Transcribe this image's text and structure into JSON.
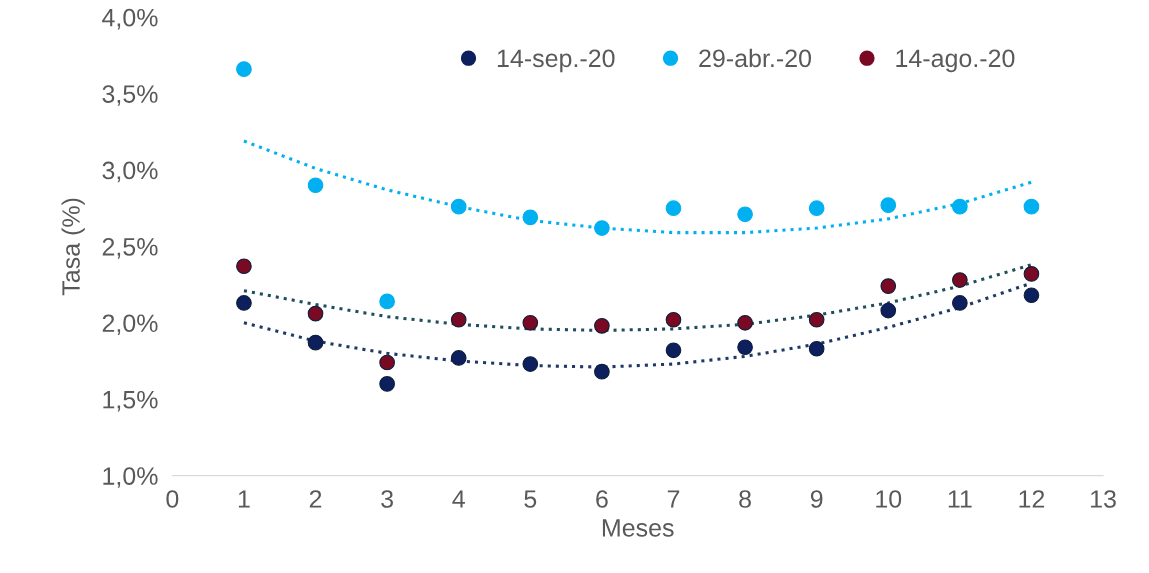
{
  "chart_data": {
    "type": "scatter",
    "xlabel": "Meses",
    "ylabel": "Tasa (%)",
    "x": [
      1,
      2,
      3,
      4,
      5,
      6,
      7,
      8,
      9,
      10,
      11,
      12
    ],
    "series": [
      {
        "name": "14-sep.-20",
        "color": "#0d1f5c",
        "values": [
          2.13,
          1.87,
          1.6,
          1.77,
          1.73,
          1.68,
          1.82,
          1.84,
          1.83,
          2.08,
          2.13,
          2.18
        ]
      },
      {
        "name": "29-abr.-20",
        "color": "#00b0f0",
        "values": [
          3.66,
          2.9,
          2.14,
          2.76,
          2.69,
          2.62,
          2.75,
          2.71,
          2.75,
          2.77,
          2.76,
          2.76
        ]
      },
      {
        "name": "14-ago.-20",
        "color": "#7a0a24",
        "values": [
          2.37,
          2.06,
          1.74,
          2.02,
          2.0,
          1.98,
          2.02,
          2.0,
          2.02,
          2.24,
          2.28,
          2.32
        ]
      },
      {
        "type": "line",
        "line_style": "dotted",
        "marker": "none",
        "color": "#1f3864",
        "values": [
          2.0,
          1.88,
          1.8,
          1.75,
          1.72,
          1.71,
          1.73,
          1.78,
          1.86,
          1.97,
          2.1,
          2.26
        ]
      },
      {
        "type": "line",
        "line_style": "dotted",
        "marker": "none",
        "color": "#00b0f0",
        "values": [
          3.19,
          3.01,
          2.87,
          2.76,
          2.67,
          2.62,
          2.59,
          2.59,
          2.62,
          2.68,
          2.78,
          2.92
        ]
      },
      {
        "type": "line",
        "line_style": "dotted",
        "marker": "none",
        "color": "#1f4e5f",
        "values": [
          2.21,
          2.12,
          2.04,
          1.99,
          1.96,
          1.95,
          1.96,
          1.99,
          2.05,
          2.13,
          2.24,
          2.38
        ]
      }
    ],
    "marker": "circle",
    "legend": "top right",
    "grid": false,
    "xlim": [
      0,
      13
    ],
    "xticks": [
      0,
      1,
      2,
      3,
      4,
      5,
      6,
      7,
      8,
      9,
      10,
      11,
      12,
      13
    ],
    "ylim": [
      1.0,
      4.0
    ],
    "yticks": [
      {
        "value": 1.0,
        "label": "1,0%"
      },
      {
        "value": 1.5,
        "label": "1,5%"
      },
      {
        "value": 2.0,
        "label": "2,0%"
      },
      {
        "value": 2.5,
        "label": "2,5%"
      },
      {
        "value": 3.0,
        "label": "3,0%"
      },
      {
        "value": 3.5,
        "label": "3,5%"
      },
      {
        "value": 4.0,
        "label": "4,0%"
      }
    ]
  }
}
